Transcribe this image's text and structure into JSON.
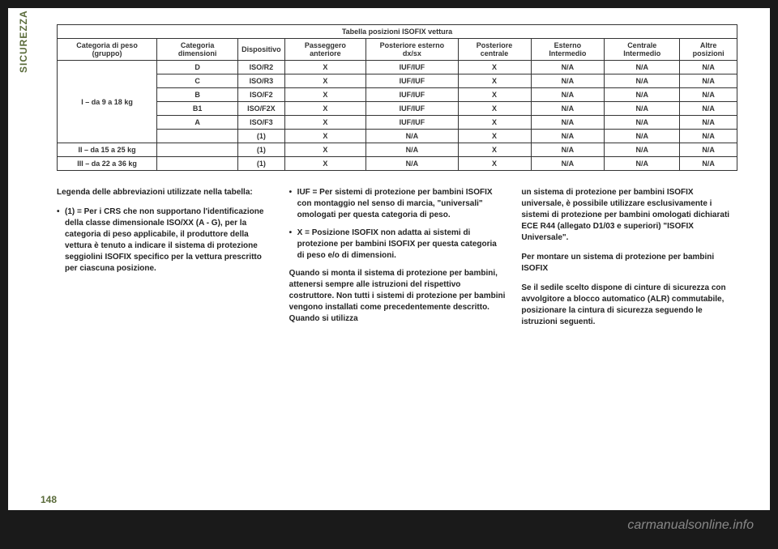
{
  "sidebar": {
    "label": "SICUREZZA"
  },
  "table": {
    "title": "Tabella posizioni ISOFIX vettura",
    "headers": [
      "Categoria di peso (gruppo)",
      "Categoria dimensioni",
      "Dispositivo",
      "Passeggero anteriore",
      "Posteriore esterno dx/sx",
      "Posteriore centrale",
      "Esterno Intermedio",
      "Centrale Intermedio",
      "Altre posizioni"
    ],
    "groups": [
      {
        "label": "I – da 9 a 18 kg",
        "rows": [
          [
            "D",
            "ISO/R2",
            "X",
            "IUF/IUF",
            "X",
            "N/A",
            "N/A",
            "N/A"
          ],
          [
            "C",
            "ISO/R3",
            "X",
            "IUF/IUF",
            "X",
            "N/A",
            "N/A",
            "N/A"
          ],
          [
            "B",
            "ISO/F2",
            "X",
            "IUF/IUF",
            "X",
            "N/A",
            "N/A",
            "N/A"
          ],
          [
            "B1",
            "ISO/F2X",
            "X",
            "IUF/IUF",
            "X",
            "N/A",
            "N/A",
            "N/A"
          ],
          [
            "A",
            "ISO/F3",
            "X",
            "IUF/IUF",
            "X",
            "N/A",
            "N/A",
            "N/A"
          ],
          [
            "",
            "(1)",
            "X",
            "N/A",
            "X",
            "N/A",
            "N/A",
            "N/A"
          ]
        ]
      },
      {
        "label": "II – da 15 a 25 kg",
        "rows": [
          [
            "",
            "(1)",
            "X",
            "N/A",
            "X",
            "N/A",
            "N/A",
            "N/A"
          ]
        ]
      },
      {
        "label": "III – da 22 a 36 kg",
        "rows": [
          [
            "",
            "(1)",
            "X",
            "N/A",
            "X",
            "N/A",
            "N/A",
            "N/A"
          ]
        ]
      }
    ]
  },
  "columns": {
    "col1": {
      "legend_title": "Legenda delle abbreviazioni utilizzate nella tabella:",
      "bullet1": "(1) = Per i CRS che non supportano l'identificazione della classe dimensionale ISO/XX (A - G), per la categoria di peso applicabile, il produttore della vettura è tenuto a indicare il sistema di protezione seggiolini ISOFIX specifico per la vettura prescritto per ciascuna posizione."
    },
    "col2": {
      "bullet1": "IUF = Per sistemi di protezione per bambini ISOFIX con montaggio nel senso di marcia, \"universali\" omologati per questa categoria di peso.",
      "bullet2": "X = Posizione ISOFIX non adatta ai sistemi di protezione per bambini ISOFIX per questa categoria di peso e/o di dimensioni.",
      "para1": "Quando si monta il sistema di protezione per bambini, attenersi sempre alle istruzioni del rispettivo costruttore. Non tutti i sistemi di protezione per bambini vengono installati come precedentemente descritto. Quando si utilizza"
    },
    "col3": {
      "para1": "un sistema di protezione per bambini ISOFIX universale, è possibile utilizzare esclusivamente i sistemi di protezione per bambini omologati dichiarati ECE R44 (allegato D1/03 e superiori) \"ISOFIX Universale\".",
      "para2": "Per montare un sistema di protezione per bambini ISOFIX",
      "para3": "Se il sedile scelto dispone di cinture di sicurezza con avvolgitore a blocco automatico (ALR) commutabile, posizionare la cintura di sicurezza seguendo le istruzioni seguenti."
    }
  },
  "page_number": "148",
  "footer_url": "carmanualsonline.info"
}
